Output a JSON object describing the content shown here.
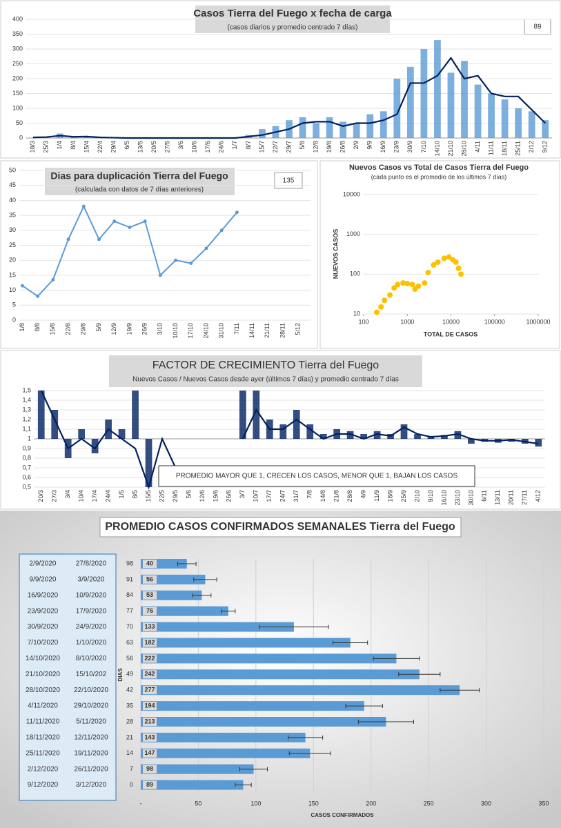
{
  "chart_data": [
    {
      "type": "bar_line",
      "title": "Casos Tierra del Fuego x fecha de carga",
      "subtitle": "(casos diarios y promedio  centrado 7 días)",
      "badge": "89",
      "categories": [
        "18/3",
        "25/3",
        "1/4",
        "8/4",
        "15/4",
        "22/4",
        "29/4",
        "6/5",
        "13/5",
        "20/5",
        "27/5",
        "3/6",
        "10/6",
        "17/6",
        "24/6",
        "1/7",
        "8/7",
        "15/7",
        "22/7",
        "29/7",
        "5/8",
        "12/8",
        "19/8",
        "26/8",
        "2/9",
        "9/9",
        "16/9",
        "23/9",
        "30/9",
        "7/10",
        "14/10",
        "21/10",
        "28/10",
        "4/11",
        "11/11",
        "18/11",
        "25/11",
        "2/12",
        "9/12"
      ],
      "series": [
        {
          "kind": "bar",
          "color": "#5b9bd5",
          "values": [
            0,
            5,
            15,
            5,
            5,
            2,
            0,
            0,
            0,
            0,
            0,
            0,
            0,
            0,
            0,
            0,
            10,
            30,
            40,
            60,
            70,
            50,
            70,
            55,
            50,
            80,
            90,
            200,
            240,
            300,
            330,
            220,
            260,
            180,
            150,
            130,
            100,
            90,
            60
          ]
        },
        {
          "kind": "line",
          "color": "#002060",
          "values": [
            2,
            3,
            8,
            4,
            5,
            2,
            1,
            0,
            0,
            0,
            0,
            0,
            0,
            0,
            0,
            0,
            5,
            10,
            20,
            30,
            50,
            55,
            55,
            40,
            50,
            50,
            60,
            80,
            185,
            185,
            210,
            270,
            200,
            210,
            150,
            140,
            140,
            95,
            50
          ]
        }
      ],
      "ylim": [
        0,
        400
      ],
      "yticks": [
        0,
        50,
        100,
        150,
        200,
        250,
        300,
        350,
        400
      ]
    },
    {
      "type": "line",
      "title": "Dias para duplicación Tierra del Fuego",
      "subtitle": "(calculada con datos de 7 días anteriores)",
      "badge": "135",
      "categories": [
        "1/8",
        "8/8",
        "15/8",
        "22/8",
        "29/8",
        "5/9",
        "12/9",
        "19/9",
        "26/9",
        "3/10",
        "10/10",
        "17/10",
        "24/10",
        "31/10",
        "7/11",
        "14/11",
        "21/11",
        "28/11",
        "5/12"
      ],
      "values": [
        11.5,
        8,
        13.5,
        27,
        38,
        27,
        33,
        31,
        33,
        15,
        20,
        19,
        24,
        30,
        36,
        null,
        null,
        null,
        null
      ],
      "color": "#5b9bd5",
      "ylim": [
        0,
        50
      ],
      "yticks": [
        0,
        5,
        10,
        15,
        20,
        25,
        30,
        35,
        40,
        45,
        50
      ]
    },
    {
      "type": "scatter",
      "title": "Nuevos Casos vs Total de Casos Tierra del Fuego",
      "subtitle": "(cada punto es el promedio de los últimos 7 días)",
      "xlabel": "TOTAL DE CASOS",
      "ylabel": "NUEVOS CASOS",
      "x": [
        200,
        250,
        300,
        400,
        500,
        600,
        800,
        1000,
        1300,
        1500,
        1800,
        2500,
        3000,
        4000,
        5000,
        7000,
        9000,
        11000,
        13000,
        15000,
        17000
      ],
      "y": [
        11,
        15,
        22,
        30,
        45,
        55,
        60,
        58,
        55,
        42,
        50,
        60,
        110,
        170,
        200,
        250,
        270,
        230,
        200,
        140,
        100
      ],
      "color": "#ffc000",
      "xlog": true,
      "ylog": true,
      "xlim": [
        100,
        1000000
      ],
      "xticks": [
        100,
        1000,
        10000,
        100000,
        1000000
      ],
      "ylim": [
        10,
        10000
      ],
      "yticks": [
        10,
        100,
        1000,
        10000
      ]
    },
    {
      "type": "bar_line",
      "title": "FACTOR DE CRECIMIENTO Tierra del Fuego",
      "subtitle": "Nuevos Casos  / Nuevos Casos desde ayer (últimos 7 días) y promedio  centrado 7 días",
      "annotation": "PROMEDIO MAYOR QUE 1, CRECEN LOS CASOS, MENOR QUE 1, BAJAN LOS CASOS",
      "baseline": 1,
      "categories": [
        "20/3",
        "27/3",
        "3/4",
        "10/4",
        "17/4",
        "24/4",
        "1/5",
        "8/5",
        "15/5",
        "22/5",
        "29/5",
        "5/6",
        "12/6",
        "19/6",
        "26/6",
        "3/7",
        "10/7",
        "17/7",
        "24/7",
        "31/7",
        "7/8",
        "14/8",
        "21/8",
        "28/8",
        "4/9",
        "11/9",
        "18/9",
        "25/9",
        "2/10",
        "9/10",
        "16/10",
        "23/10",
        "30/10",
        "6/11",
        "13/11",
        "20/11",
        "27/11",
        "4/12"
      ],
      "series": [
        {
          "kind": "bar",
          "color": "#002060",
          "values": [
            1.5,
            1.3,
            0.8,
            1.1,
            0.85,
            1.2,
            1.1,
            1.5,
            0.5,
            null,
            null,
            null,
            null,
            null,
            null,
            1.5,
            1.5,
            1.2,
            1.15,
            1.3,
            1.15,
            1.05,
            1.1,
            1.08,
            1.05,
            1.08,
            1.05,
            1.15,
            1.05,
            1.03,
            1.04,
            1.08,
            0.95,
            0.97,
            0.96,
            0.97,
            0.95,
            0.92
          ]
        },
        {
          "kind": "line",
          "color": "#002060",
          "values": [
            1.5,
            1.2,
            0.9,
            1.0,
            0.9,
            1.1,
            1.0,
            0.9,
            0.5,
            1.0,
            0.7,
            null,
            null,
            null,
            null,
            1.0,
            1.3,
            1.1,
            1.1,
            1.2,
            1.1,
            1.0,
            1.05,
            1.05,
            1.0,
            1.05,
            1.03,
            1.12,
            1.05,
            1.02,
            1.03,
            1.05,
            1.0,
            0.98,
            0.98,
            0.99,
            0.97,
            0.95
          ]
        }
      ],
      "ylim": [
        0.5,
        1.5
      ],
      "yticks": [
        {
          "value": 0.5,
          "label": "0,5"
        },
        {
          "value": 0.6,
          "label": "0,6"
        },
        {
          "value": 0.7,
          "label": "0,7"
        },
        {
          "value": 0.8,
          "label": "0,8"
        },
        {
          "value": 0.9,
          "label": "0,9"
        },
        1,
        {
          "value": 1.1,
          "label": "1,1"
        },
        {
          "value": 1.2,
          "label": "1,2"
        },
        {
          "value": 1.3,
          "label": "1,3"
        },
        {
          "value": 1.4,
          "label": "1,4"
        },
        {
          "value": 1.5,
          "label": "1,5"
        }
      ]
    },
    {
      "type": "hbar",
      "title": "PROMEDIO CASOS CONFIRMADOS SEMANALES Tierra del Fuego",
      "xlabel": "CASOS CONFIRMADOS",
      "ylabel": "DIAS",
      "categories": [
        "98",
        "91",
        "84",
        "77",
        "70",
        "63",
        "56",
        "49",
        "42",
        "35",
        "28",
        "21",
        "14",
        "7",
        "0"
      ],
      "values": [
        40,
        56,
        53,
        76,
        133,
        182,
        222,
        242,
        277,
        194,
        213,
        143,
        147,
        98,
        89
      ],
      "errors": [
        8,
        10,
        8,
        6,
        30,
        15,
        20,
        18,
        17,
        16,
        24,
        15,
        18,
        12,
        7
      ],
      "color": "#5b9bd5",
      "xlim": [
        0,
        350
      ],
      "xticks": [
        {
          "value": 0,
          "label": "-"
        },
        50,
        100,
        150,
        200,
        250,
        300,
        350
      ],
      "table": {
        "rows": [
          [
            "2/9/2020",
            "27/8/2020"
          ],
          [
            "9/9/2020",
            "3/9/2020"
          ],
          [
            "16/9/2020",
            "10/9/2020"
          ],
          [
            "23/9/2020",
            "17/9/2020"
          ],
          [
            "30/9/2020",
            "24/9/2020"
          ],
          [
            "7/10/2020",
            "1/10/2020"
          ],
          [
            "14/10/2020",
            "8/10/2020"
          ],
          [
            "21/10/2020",
            "15/10/202"
          ],
          [
            "28/10/2020",
            "22/10/2020"
          ],
          [
            "4/11/2020",
            "29/10/2020"
          ],
          [
            "11/11/2020",
            "5/11/2020"
          ],
          [
            "18/11/2020",
            "12/11/2020"
          ],
          [
            "25/11/2020",
            "19/11/2020"
          ],
          [
            "2/12/2020",
            "26/11/2020"
          ],
          [
            "9/12/2020",
            "3/12/2020"
          ]
        ]
      }
    }
  ]
}
